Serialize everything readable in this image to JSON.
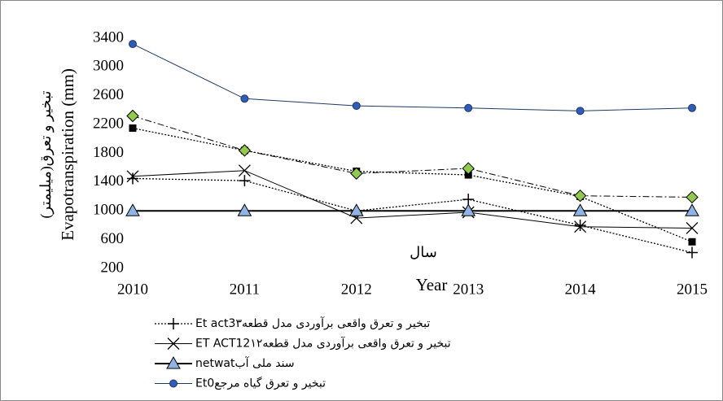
{
  "chart_data": {
    "type": "line",
    "y_label": "Evapotranspiration (mm)",
    "y_label_2": "تبخیر و تعرق(میلیمتر)",
    "x_label": "Year",
    "x_label_2": "سال",
    "x": [
      2010,
      2011,
      2012,
      2013,
      2014,
      2015
    ],
    "xlim": [
      2010,
      2015
    ],
    "xticks": [
      2010,
      2011,
      2012,
      2013,
      2014,
      2015
    ],
    "ylim": [
      200,
      3400
    ],
    "yticks": [
      200,
      600,
      1000,
      1400,
      1800,
      2200,
      2600,
      3000,
      3400
    ],
    "grid": false,
    "series": [
      {
        "color": "#000000",
        "dash": "2,2",
        "marker": "square",
        "marker_color": "#000000",
        "width": 1.3,
        "values": [
          2150,
          1840,
          1550,
          1500,
          1200,
          570
        ]
      },
      {
        "color": "#000000",
        "dash": "8,3,2,3",
        "marker": "diamond",
        "marker_color": "#92c84f",
        "width": 1,
        "values": [
          2320,
          1840,
          1520,
          1590,
          1210,
          1190
        ]
      },
      {
        "name": "Et act3تبخیر و تعرق واقعی برآوردی مدل قطعه۳",
        "color": "#000000",
        "dash": "2,2",
        "marker": "plus",
        "marker_color": "#000000",
        "width": 1.3,
        "values": [
          1450,
          1420,
          1000,
          1160,
          800,
          420
        ]
      },
      {
        "name": "ET ACT12تبخیر و تعرق واقعی برآوردی مدل قطعه۱۲",
        "color": "#000000",
        "dash": "",
        "marker": "cross",
        "marker_color": "#000000",
        "width": 1,
        "values": [
          1480,
          1560,
          900,
          980,
          780,
          760
        ]
      },
      {
        "name": "netwatسند ملی آب",
        "color": "#000000",
        "dash": "",
        "marker": "triangle",
        "marker_color": "#8fb4e3",
        "width": 2,
        "values": [
          1000,
          1000,
          1000,
          1000,
          1000,
          1000
        ]
      },
      {
        "name": "Et0تبخیر و تعرق گیاه مرجع",
        "color": "#1f3864",
        "dash": "",
        "marker": "circle",
        "marker_color": "#2e5cb8",
        "width": 1,
        "values": [
          3320,
          2560,
          2460,
          2430,
          2390,
          2430
        ]
      }
    ]
  }
}
